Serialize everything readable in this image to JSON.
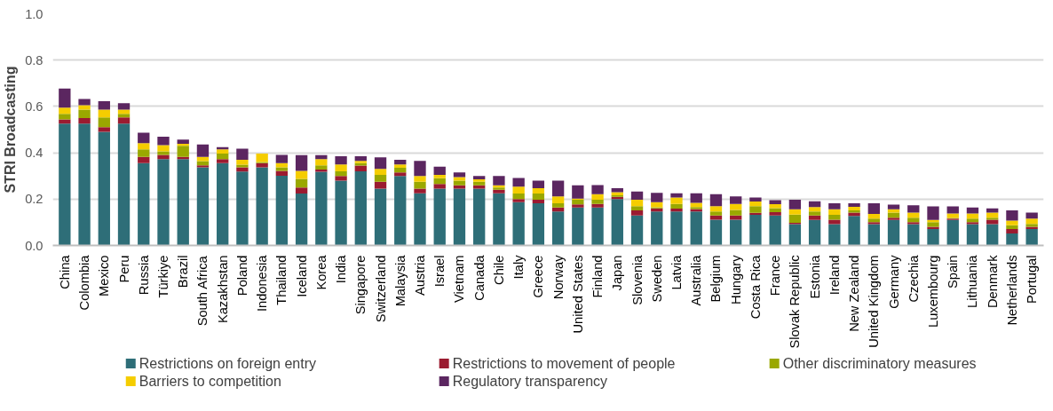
{
  "chart_data": {
    "type": "bar",
    "stacked": true,
    "ylabel": "STRI Broadcasting",
    "categories": [
      "China",
      "Colombia",
      "Mexico",
      "Peru",
      "Russia",
      "Türkiye",
      "Brazil",
      "South Africa",
      "Kazakhstan",
      "Poland",
      "Indonesia",
      "Thailand",
      "Iceland",
      "Korea",
      "India",
      "Singapore",
      "Switzerland",
      "Malaysia",
      "Austria",
      "Israel",
      "Vietnam",
      "Canada",
      "Chile",
      "Italy",
      "Greece",
      "Norway",
      "United States",
      "Finland",
      "Japan",
      "Slovenia",
      "Sweden",
      "Latvia",
      "Australia",
      "Belgium",
      "Hungary",
      "Costa Rica",
      "France",
      "Slovak Republic",
      "Estonia",
      "Ireland",
      "New Zealand",
      "United Kingdom",
      "Germany",
      "Czechia",
      "Luxembourg",
      "Spain",
      "Lithuania",
      "Denmark",
      "Netherlands",
      "Portugal"
    ],
    "series": [
      {
        "name": "Restrictions on foreign entry",
        "color": "#2e6e78",
        "values": [
          0.526,
          0.526,
          0.49,
          0.526,
          0.355,
          0.373,
          0.373,
          0.337,
          0.355,
          0.319,
          0.337,
          0.301,
          0.224,
          0.318,
          0.28,
          0.32,
          0.245,
          0.3,
          0.225,
          0.245,
          0.245,
          0.245,
          0.225,
          0.187,
          0.182,
          0.147,
          0.164,
          0.164,
          0.2,
          0.129,
          0.147,
          0.147,
          0.147,
          0.111,
          0.111,
          0.132,
          0.129,
          0.092,
          0.11,
          0.092,
          0.127,
          0.092,
          0.11,
          0.092,
          0.071,
          0.11,
          0.092,
          0.092,
          0.052,
          0.071
        ]
      },
      {
        "name": "Restrictions to movement of people",
        "color": "#9b1b30",
        "values": [
          0.018,
          0.024,
          0.021,
          0.027,
          0.027,
          0.018,
          0.009,
          0.009,
          0.018,
          0.018,
          0.018,
          0.021,
          0.026,
          0.01,
          0.02,
          0.025,
          0.03,
          0.015,
          0.02,
          0.02,
          0.015,
          0.015,
          0.015,
          0.013,
          0.015,
          0.017,
          0.013,
          0.015,
          0.01,
          0.022,
          0.013,
          0.012,
          0.01,
          0.018,
          0.018,
          0.009,
          0.015,
          0.006,
          0.019,
          0.019,
          0.015,
          0.009,
          0.01,
          0.009,
          0.009,
          0.006,
          0.009,
          0.019,
          0.019,
          0.009
        ]
      },
      {
        "name": "Other discriminatory measures",
        "color": "#9aa800",
        "values": [
          0.024,
          0.036,
          0.042,
          0.015,
          0.033,
          0.015,
          0.048,
          0.018,
          0.024,
          0.012,
          0.005,
          0.015,
          0.037,
          0.018,
          0.02,
          0.01,
          0.03,
          0.02,
          0.03,
          0.025,
          0.02,
          0.015,
          0.01,
          0.024,
          0.027,
          0.018,
          0.02,
          0.018,
          0.006,
          0.019,
          0.005,
          0.02,
          0.009,
          0.018,
          0.024,
          0.029,
          0.017,
          0.035,
          0.018,
          0.021,
          0.009,
          0.015,
          0.022,
          0.019,
          0.021,
          0.003,
          0.015,
          0.009,
          0.016,
          0.013
        ]
      },
      {
        "name": "Barriers to competition",
        "color": "#f5cd00",
        "values": [
          0.027,
          0.019,
          0.033,
          0.018,
          0.027,
          0.027,
          0.009,
          0.018,
          0.018,
          0.021,
          0.037,
          0.018,
          0.035,
          0.027,
          0.03,
          0.01,
          0.025,
          0.015,
          0.025,
          0.015,
          0.015,
          0.01,
          0.01,
          0.03,
          0.023,
          0.03,
          0.005,
          0.024,
          0.014,
          0.027,
          0.022,
          0.028,
          0.018,
          0.023,
          0.026,
          0.02,
          0.017,
          0.023,
          0.019,
          0.024,
          0.016,
          0.02,
          0.014,
          0.022,
          0.009,
          0.019,
          0.022,
          0.022,
          0.02,
          0.023
        ]
      },
      {
        "name": "Regulatory transparency",
        "color": "#5b2660",
        "values": [
          0.082,
          0.027,
          0.037,
          0.028,
          0.045,
          0.036,
          0.018,
          0.054,
          0.009,
          0.048,
          0.0,
          0.036,
          0.068,
          0.017,
          0.035,
          0.02,
          0.05,
          0.02,
          0.065,
          0.035,
          0.02,
          0.015,
          0.04,
          0.037,
          0.033,
          0.068,
          0.058,
          0.04,
          0.017,
          0.036,
          0.04,
          0.018,
          0.041,
          0.051,
          0.033,
          0.017,
          0.017,
          0.041,
          0.025,
          0.026,
          0.015,
          0.046,
          0.02,
          0.031,
          0.059,
          0.031,
          0.026,
          0.018,
          0.044,
          0.026
        ]
      }
    ],
    "ylim": [
      0,
      1
    ],
    "yticks": [
      {
        "value": 0,
        "label": "0.0"
      },
      {
        "value": 0.2,
        "label": "0.2"
      },
      {
        "value": 0.4,
        "label": "0.4"
      },
      {
        "value": 0.6,
        "label": "0.6"
      },
      {
        "value": 0.8,
        "label": "0.8"
      },
      {
        "value": 1,
        "label": "1.0"
      }
    ],
    "grid": "y",
    "legend": "bottom"
  }
}
